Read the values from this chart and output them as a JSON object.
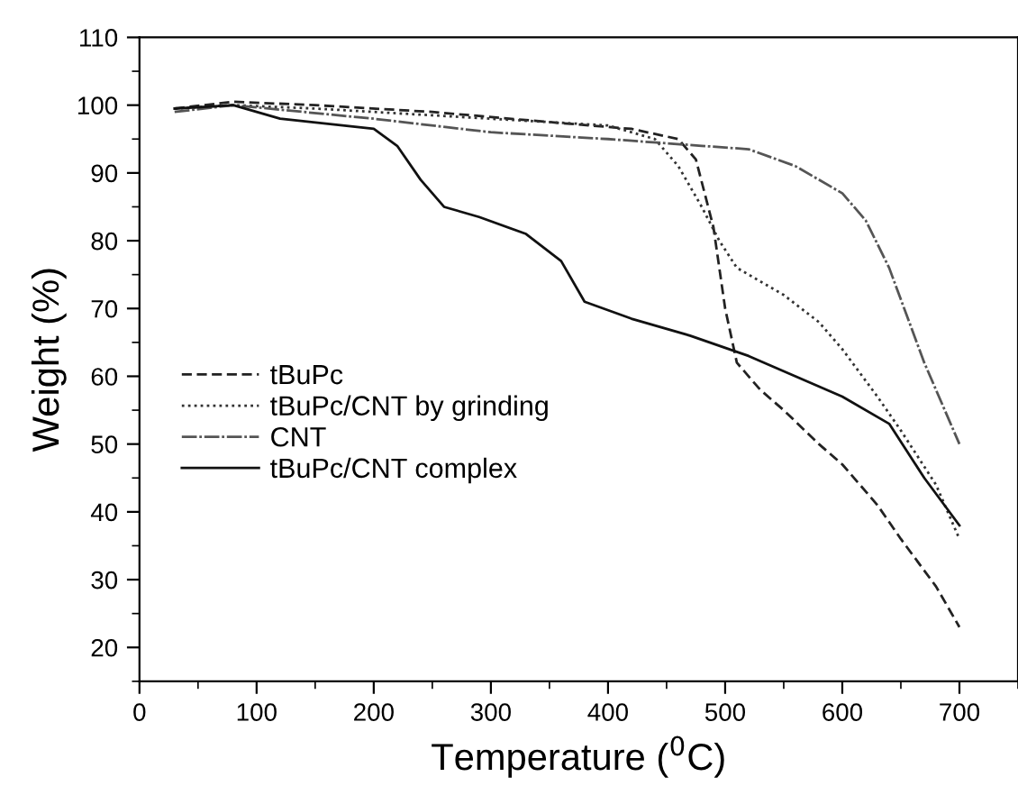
{
  "chart_data": {
    "type": "line",
    "xlabel": "Temperature ($^{0}$C)",
    "ylabel": "Weight (%)",
    "xlim": [
      0,
      750
    ],
    "xticks": [
      0,
      100,
      200,
      300,
      400,
      500,
      600,
      700
    ],
    "ylim": [
      15,
      110
    ],
    "yticks": [
      20,
      30,
      40,
      50,
      60,
      70,
      80,
      90,
      100,
      110
    ],
    "legend": "left",
    "grid": false,
    "marker": "none",
    "series": [
      {
        "name": "tBuPc",
        "color": "#222222",
        "line_style": "dashed",
        "x": [
          30,
          80,
          150,
          250,
          350,
          420,
          460,
          475,
          490,
          500,
          510,
          530,
          550,
          580,
          600,
          630,
          650,
          680,
          700
        ],
        "values": [
          99.5,
          100.5,
          100,
          99,
          97.5,
          96.5,
          95,
          92,
          82,
          70,
          62,
          58,
          55,
          50,
          47,
          41,
          36,
          29,
          23
        ]
      },
      {
        "name": "tBuPc/CNT by grinding",
        "color": "#333333",
        "line_style": "dotted",
        "x": [
          30,
          80,
          150,
          250,
          350,
          400,
          440,
          460,
          480,
          495,
          510,
          530,
          550,
          580,
          600,
          630,
          650,
          680,
          700
        ],
        "values": [
          99.5,
          100,
          99.5,
          98.5,
          97.5,
          97,
          95,
          91,
          85,
          80,
          76,
          74,
          72,
          68,
          64,
          57,
          52,
          44,
          36
        ]
      },
      {
        "name": "CNT",
        "color": "#555555",
        "line_style": "dashdot",
        "x": [
          30,
          80,
          200,
          300,
          400,
          480,
          520,
          560,
          600,
          620,
          640,
          655,
          670,
          685,
          700
        ],
        "values": [
          99,
          100,
          98,
          96,
          95,
          94,
          93.5,
          91,
          87,
          83,
          76,
          69,
          62,
          56,
          50
        ]
      },
      {
        "name": "tBuPc/CNT complex",
        "color": "#111111",
        "line_style": "solid",
        "x": [
          30,
          80,
          120,
          200,
          220,
          240,
          260,
          290,
          330,
          360,
          380,
          420,
          470,
          520,
          560,
          600,
          640,
          670,
          700
        ],
        "values": [
          99.5,
          100,
          98,
          96.5,
          94,
          89,
          85,
          83.5,
          81,
          77,
          71,
          68.5,
          66,
          63,
          60,
          57,
          53,
          45,
          38
        ]
      }
    ]
  }
}
